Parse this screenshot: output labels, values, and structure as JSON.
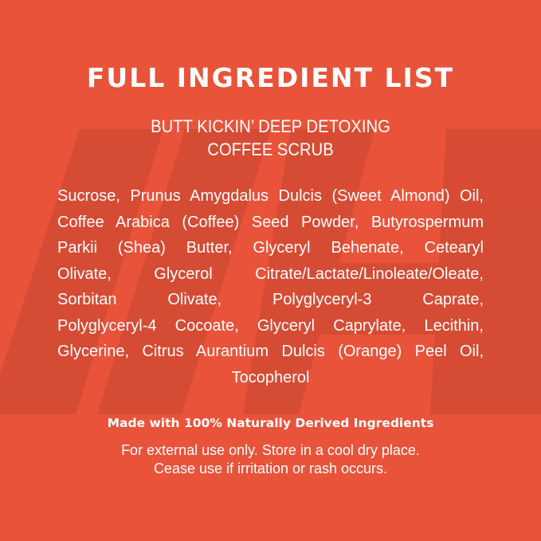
{
  "colors": {
    "background": "#E8533A",
    "watermark": "#D44A34",
    "text": "#FFFFFF"
  },
  "watermark_logo": "//H",
  "title": "FULL INGREDIENT LIST",
  "product": [
    "BUTT KICKIN’ DEEP DETOXING",
    "COFFEE SCRUB"
  ],
  "ingredients_lines": [
    "Sucrose, Prunus Amygdalus Dulcis (Sweet Almond) Oil,",
    "Coffee Arabica (Coffee) Seed Powder, Butyrospermum",
    "Parkii (Shea) Butter, Glyceryl Behenate, Cetearyl",
    "Olivate, Glycerol Citrate/Lactate/Linoleate/Oleate,",
    "Sorbitan Olivate, Polyglyceryl-3 Caprate,",
    "Polyglyceryl-4 Cocoate, Glyceryl Caprylate, Lecithin,",
    "Glycerine, Citrus Aurantium Dulcis (Orange) Peel Oil,",
    "Tocopherol"
  ],
  "claim": "Made with 100% Naturally Derived Ingredients",
  "care": [
    "For external use only. Store in a cool dry place.",
    "Cease use if irritation or rash occurs."
  ]
}
